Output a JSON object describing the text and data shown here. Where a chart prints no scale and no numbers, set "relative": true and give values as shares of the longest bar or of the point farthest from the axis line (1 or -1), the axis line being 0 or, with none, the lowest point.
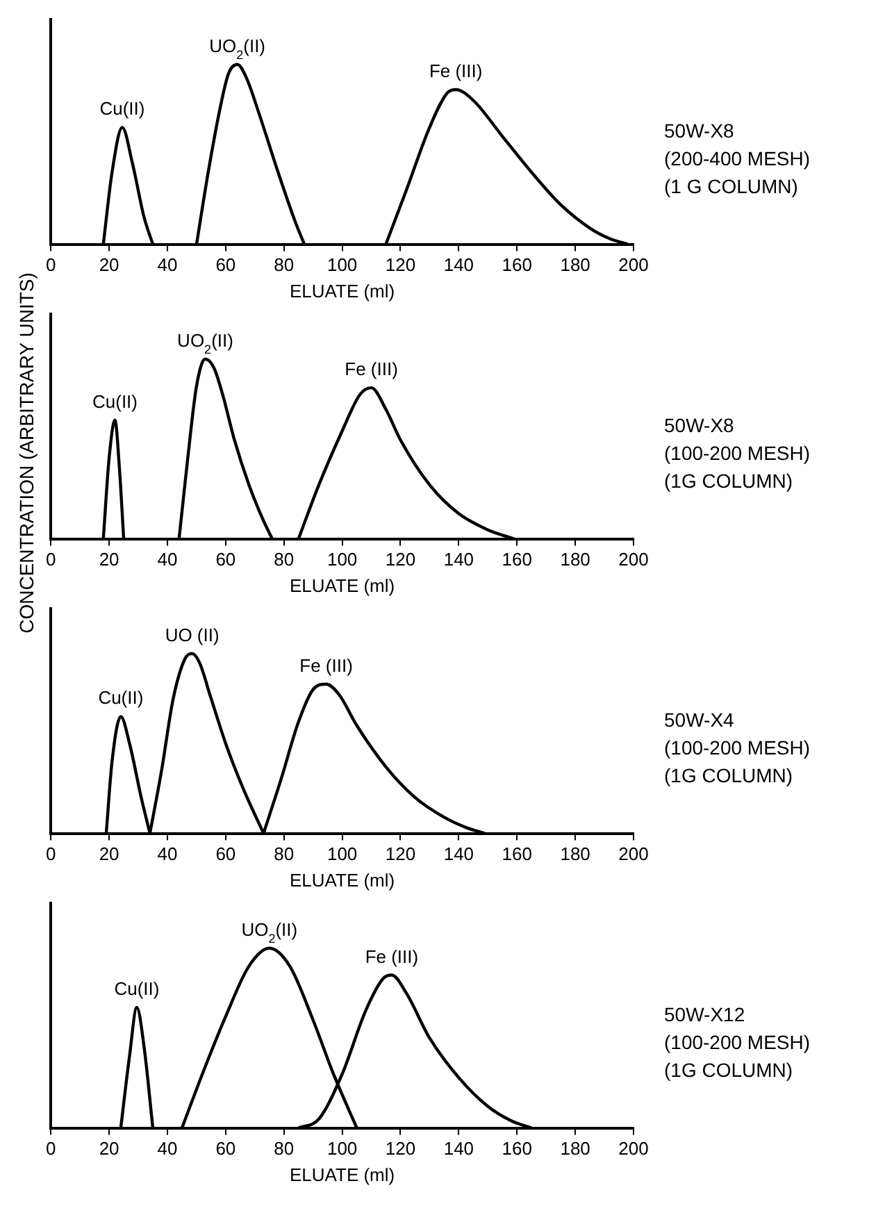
{
  "chart_data": [
    {
      "type": "line",
      "relative": true,
      "marker": "none",
      "xlabel": "ELUATE (ml)",
      "xlim": [
        0,
        200
      ],
      "xticks": [
        0,
        20,
        40,
        60,
        80,
        100,
        120,
        140,
        160,
        180,
        200
      ],
      "annotations": [
        "50W-X8",
        "(200-400 MESH)",
        "(1 G COLUMN)"
      ],
      "series": [
        {
          "name": "Cu(II)",
          "color": "#000000",
          "x": [
            18,
            21,
            24.5,
            28,
            32,
            35
          ],
          "values": [
            0,
            0.4,
            0.65,
            0.45,
            0.15,
            0
          ]
        },
        {
          "name": "UO$_{2}$(II)",
          "color": "#000000",
          "x": [
            50,
            54,
            58,
            61,
            64,
            67,
            72,
            78,
            84,
            87
          ],
          "values": [
            0,
            0.4,
            0.75,
            0.95,
            1,
            0.93,
            0.7,
            0.4,
            0.12,
            0
          ]
        },
        {
          "name": "Fe (III)",
          "color": "#000000",
          "x": [
            115,
            122,
            130,
            136,
            139,
            145,
            155,
            165,
            175,
            185,
            192,
            198
          ],
          "values": [
            0,
            0.3,
            0.65,
            0.84,
            0.86,
            0.8,
            0.6,
            0.4,
            0.22,
            0.09,
            0.03,
            0
          ]
        }
      ]
    },
    {
      "type": "line",
      "relative": true,
      "marker": "none",
      "xlabel": "ELUATE (ml)",
      "ylabel": "CONCENTRATION (ARBITRARY UNITS)",
      "xlim": [
        0,
        200
      ],
      "xticks": [
        0,
        20,
        40,
        60,
        80,
        100,
        120,
        140,
        160,
        180,
        200
      ],
      "annotations": [
        "50W-X8",
        "(100-200 MESH)",
        "(1G COLUMN)"
      ],
      "series": [
        {
          "name": "Cu(II)",
          "color": "#000000",
          "x": [
            18,
            20,
            22,
            23.5,
            25
          ],
          "values": [
            0,
            0.45,
            0.66,
            0.4,
            0
          ]
        },
        {
          "name": "UO$_{2}$(II)",
          "color": "#000000",
          "x": [
            44,
            47,
            50,
            53,
            56,
            59,
            63,
            68,
            73,
            76
          ],
          "values": [
            0,
            0.45,
            0.85,
            1,
            0.95,
            0.8,
            0.55,
            0.3,
            0.1,
            0
          ]
        },
        {
          "name": "Fe (III)",
          "color": "#000000",
          "x": [
            85,
            92,
            100,
            106,
            110,
            115,
            120,
            130,
            140,
            150,
            159
          ],
          "values": [
            0,
            0.3,
            0.6,
            0.8,
            0.84,
            0.72,
            0.55,
            0.3,
            0.14,
            0.05,
            0
          ]
        }
      ]
    },
    {
      "type": "line",
      "relative": true,
      "marker": "none",
      "xlabel": "ELUATE (ml)",
      "xlim": [
        0,
        200
      ],
      "xticks": [
        0,
        20,
        40,
        60,
        80,
        100,
        120,
        140,
        160,
        180,
        200
      ],
      "annotations": [
        "50W-X4",
        "(100-200 MESH)",
        "(1G COLUMN)"
      ],
      "series": [
        {
          "name": "Cu(II)",
          "color": "#000000",
          "x": [
            19,
            21,
            24,
            27,
            31,
            34
          ],
          "values": [
            0,
            0.4,
            0.65,
            0.5,
            0.2,
            0
          ]
        },
        {
          "name": "UO (II)",
          "color": "#000000",
          "x": [
            34,
            38,
            42,
            46,
            48.5,
            51,
            55,
            60,
            66,
            73
          ],
          "values": [
            0,
            0.35,
            0.75,
            0.97,
            1,
            0.95,
            0.75,
            0.5,
            0.25,
            0
          ]
        },
        {
          "name": "Fe (III)",
          "color": "#000000",
          "x": [
            73,
            79,
            85,
            90,
            94.5,
            99,
            105,
            115,
            125,
            135,
            143,
            149
          ],
          "values": [
            0,
            0.3,
            0.62,
            0.8,
            0.83,
            0.77,
            0.6,
            0.37,
            0.2,
            0.09,
            0.03,
            0
          ]
        }
      ]
    },
    {
      "type": "line",
      "relative": true,
      "marker": "none",
      "xlabel": "ELUATE (ml)",
      "xlim": [
        0,
        200
      ],
      "xticks": [
        0,
        20,
        40,
        60,
        80,
        100,
        120,
        140,
        160,
        180,
        200
      ],
      "annotations": [
        "50W-X12",
        "(100-200 MESH)",
        "(1G COLUMN)"
      ],
      "series": [
        {
          "name": "Cu(II)",
          "color": "#000000",
          "x": [
            24,
            27,
            29.5,
            32,
            35
          ],
          "values": [
            0,
            0.4,
            0.67,
            0.45,
            0
          ]
        },
        {
          "name": "UO$_{2}$(II)",
          "color": "#000000",
          "x": [
            45,
            52,
            60,
            68,
            75,
            82,
            90,
            97,
            105
          ],
          "values": [
            0,
            0.3,
            0.62,
            0.9,
            1,
            0.9,
            0.6,
            0.3,
            0
          ]
        },
        {
          "name": "Fe (III)",
          "color": "#000000",
          "x": [
            85,
            92,
            100,
            108,
            114,
            117,
            122,
            130,
            140,
            150,
            158,
            165
          ],
          "values": [
            0,
            0.05,
            0.3,
            0.65,
            0.83,
            0.85,
            0.75,
            0.5,
            0.28,
            0.12,
            0.04,
            0
          ]
        }
      ]
    }
  ]
}
